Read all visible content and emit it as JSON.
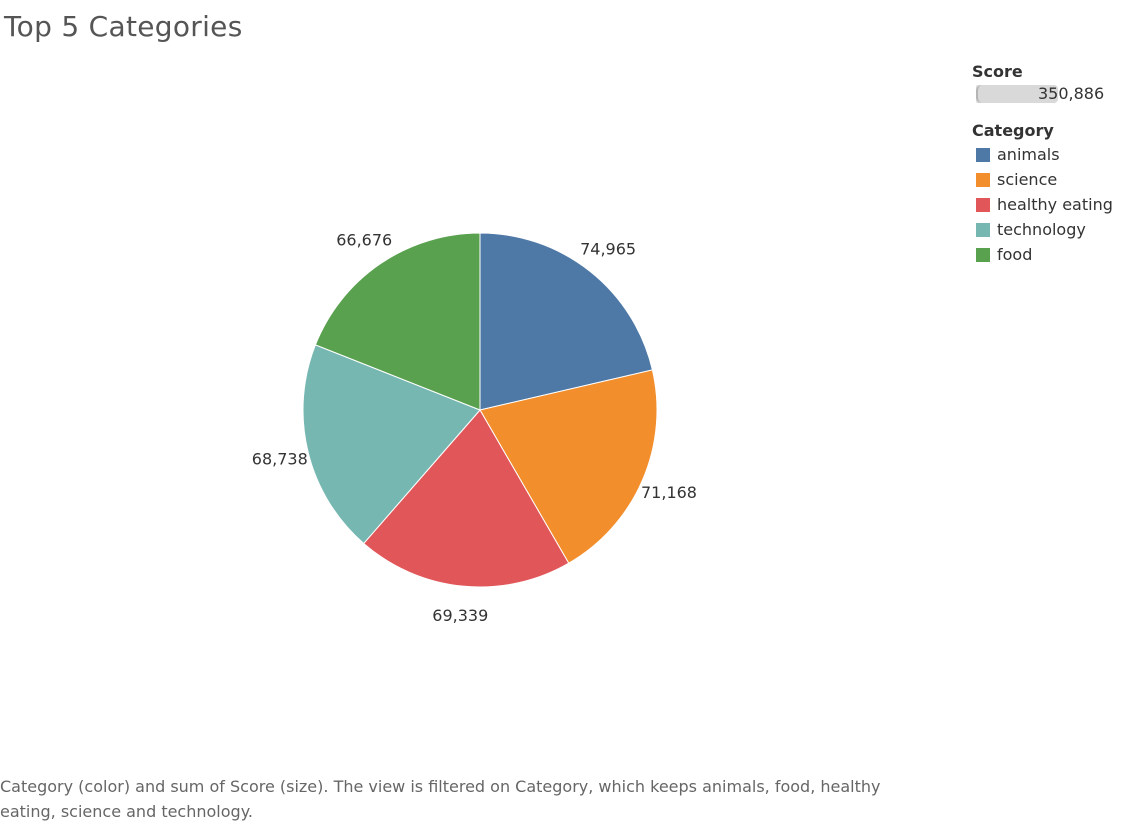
{
  "title": "Top 5 Categories",
  "legend": {
    "size_heading": "Score",
    "size_value": "350,886",
    "color_heading": "Category",
    "items": [
      {
        "label": "animals",
        "color": "#4e79a7"
      },
      {
        "label": "science",
        "color": "#f28e2b"
      },
      {
        "label": "healthy eating",
        "color": "#e15759"
      },
      {
        "label": "technology",
        "color": "#76b7b2"
      },
      {
        "label": "food",
        "color": "#59a14f"
      }
    ]
  },
  "caption": "Category (color) and sum of Score (size). The view is filtered on Category, which keeps animals, food, healthy eating, science and technology.",
  "chart_data": {
    "type": "pie",
    "title": "Top 5 Categories",
    "categories": [
      "animals",
      "science",
      "healthy eating",
      "technology",
      "food"
    ],
    "values": [
      74965,
      71168,
      69339,
      68738,
      66676
    ],
    "labels": [
      "74,965",
      "71,168",
      "69,339",
      "68,738",
      "66,676"
    ],
    "colors": [
      "#4e79a7",
      "#f28e2b",
      "#e15759",
      "#76b7b2",
      "#59a14f"
    ],
    "legend_position": "top-right"
  }
}
